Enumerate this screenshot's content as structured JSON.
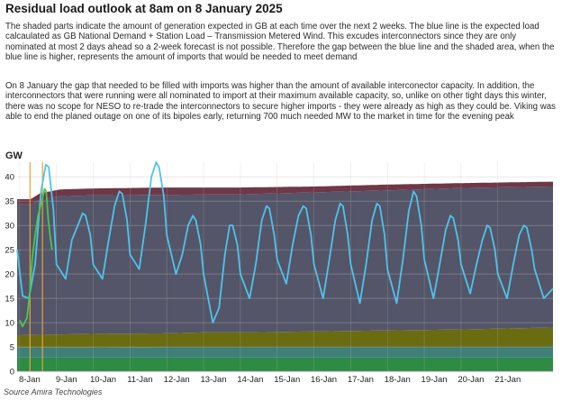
{
  "title": "Residual load outlook at 8am on 8 January 2025",
  "paragraphs": [
    "The shaded parts indicate the amount of generation expected in GB at each time over the next 2 weeks. The blue line is the expected load calcaulated as GB National Demand + Station Load – Transmission Metered Wind. This excudes interconnectors since they are only nominated at most 2 days ahead so a 2-week forecast is not possible. Therefore the gap between the blue line and the shaded area, when the blue line is higher, represents the amount of imports that would be needed to meet demand",
    "On 8 January the gap that needed to be filled with imports was higher than the amount of available interconector capacity. In addition, the interconnectors that were running were all nominated to import at their maximum available capacity, so, unlike on other tight days this winter, there was no scope for NESO to re-trade the interconnectors to secure higher imports - they were already as high as they could be. Viking was able to end the planed outage on one of its bipoles early, returning 700 much needed MW to the market in time for the evening peak"
  ],
  "source": "Source Amira Technologies",
  "colors": {
    "band_green": "#2e8b44",
    "band_teal": "#3e7f78",
    "band_olive": "#6b6b12",
    "band_slate": "#545568",
    "band_maroon": "#6e3848",
    "line_blue": "#4fc3ec",
    "line_green": "#46c94a",
    "marker": "#e8a23a",
    "grid": "#bdbdbd"
  },
  "chart_data": {
    "type": "area",
    "ylabel": "GW",
    "ylim": [
      0,
      43
    ],
    "yticks": [
      0,
      5,
      10,
      15,
      20,
      25,
      30,
      35,
      40
    ],
    "xlim": [
      7.93,
      22.5
    ],
    "xticks": [
      {
        "x": 8,
        "label": "8-Jan"
      },
      {
        "x": 9,
        "label": "9-Jan"
      },
      {
        "x": 10,
        "label": "10-Jan"
      },
      {
        "x": 11,
        "label": "11-Jan"
      },
      {
        "x": 12,
        "label": "12-Jan"
      },
      {
        "x": 13,
        "label": "13-Jan"
      },
      {
        "x": 14,
        "label": "14-Jan"
      },
      {
        "x": 15,
        "label": "15-Jan"
      },
      {
        "x": 16,
        "label": "16-Jan"
      },
      {
        "x": 17,
        "label": "17-Jan"
      },
      {
        "x": 18,
        "label": "18-Jan"
      },
      {
        "x": 19,
        "label": "19-Jan"
      },
      {
        "x": 20,
        "label": "20-Jan"
      },
      {
        "x": 21,
        "label": "21-Jan"
      }
    ],
    "stacked_bands": [
      {
        "color": "#2e8b44",
        "points": [
          [
            7.93,
            2.8
          ],
          [
            22.5,
            2.8
          ]
        ]
      },
      {
        "color": "#3e7f78",
        "points": [
          [
            7.93,
            5.0
          ],
          [
            8.55,
            4.9
          ],
          [
            10,
            4.9
          ],
          [
            12,
            5.0
          ],
          [
            14,
            5.0
          ],
          [
            16,
            5.0
          ],
          [
            18,
            5.0
          ],
          [
            22.5,
            5.0
          ]
        ]
      },
      {
        "color": "#6b6b12",
        "points": [
          [
            7.93,
            7.4
          ],
          [
            8.55,
            7.5
          ],
          [
            10,
            7.7
          ],
          [
            12,
            7.8
          ],
          [
            13,
            8.0
          ],
          [
            14,
            8.0
          ],
          [
            16,
            8.2
          ],
          [
            18,
            8.4
          ],
          [
            20,
            8.6
          ],
          [
            22.5,
            9.0
          ]
        ]
      },
      {
        "color": "#545568",
        "points": [
          [
            7.93,
            34.5
          ],
          [
            8.3,
            34.3
          ],
          [
            8.55,
            35.3
          ],
          [
            9.1,
            36.0
          ],
          [
            10,
            36.2
          ],
          [
            12,
            36.3
          ],
          [
            14,
            36.4
          ],
          [
            16,
            36.8
          ],
          [
            18,
            37.2
          ],
          [
            20,
            37.7
          ],
          [
            22.5,
            38.0
          ]
        ]
      },
      {
        "color": "#6e3848",
        "points": [
          [
            7.93,
            35.4
          ],
          [
            8.3,
            35.4
          ],
          [
            8.55,
            36.6
          ],
          [
            9.1,
            37.4
          ],
          [
            10,
            37.6
          ],
          [
            12,
            37.8
          ],
          [
            14,
            37.8
          ],
          [
            16,
            38.0
          ],
          [
            18,
            38.4
          ],
          [
            20,
            38.7
          ],
          [
            22.5,
            39.0
          ]
        ]
      }
    ],
    "series": [
      {
        "color": "#4fc3ec",
        "points": [
          [
            7.93,
            25
          ],
          [
            8.08,
            15.5
          ],
          [
            8.25,
            15
          ],
          [
            8.42,
            22
          ],
          [
            8.58,
            37
          ],
          [
            8.71,
            42.5
          ],
          [
            8.79,
            42
          ],
          [
            8.92,
            33
          ],
          [
            9.0,
            22
          ],
          [
            9.25,
            19
          ],
          [
            9.42,
            27
          ],
          [
            9.58,
            30
          ],
          [
            9.71,
            32.5
          ],
          [
            9.79,
            32
          ],
          [
            9.92,
            28
          ],
          [
            10.0,
            22
          ],
          [
            10.25,
            19
          ],
          [
            10.42,
            27
          ],
          [
            10.58,
            34
          ],
          [
            10.71,
            37
          ],
          [
            10.79,
            36.5
          ],
          [
            10.92,
            31
          ],
          [
            11.0,
            24
          ],
          [
            11.25,
            21
          ],
          [
            11.42,
            30
          ],
          [
            11.58,
            40
          ],
          [
            11.71,
            43
          ],
          [
            11.79,
            42
          ],
          [
            11.92,
            36
          ],
          [
            12.0,
            28
          ],
          [
            12.25,
            20
          ],
          [
            12.42,
            24
          ],
          [
            12.58,
            30
          ],
          [
            12.71,
            32
          ],
          [
            12.79,
            31
          ],
          [
            12.92,
            26
          ],
          [
            13.0,
            20
          ],
          [
            13.25,
            10
          ],
          [
            13.42,
            13
          ],
          [
            13.58,
            24
          ],
          [
            13.71,
            30
          ],
          [
            13.79,
            30
          ],
          [
            13.92,
            26
          ],
          [
            14.0,
            20
          ],
          [
            14.25,
            15
          ],
          [
            14.42,
            22
          ],
          [
            14.58,
            31
          ],
          [
            14.71,
            34
          ],
          [
            14.79,
            33.5
          ],
          [
            14.92,
            28
          ],
          [
            15.0,
            23
          ],
          [
            15.25,
            18
          ],
          [
            15.42,
            26
          ],
          [
            15.58,
            32
          ],
          [
            15.71,
            34
          ],
          [
            15.79,
            33.5
          ],
          [
            15.92,
            28
          ],
          [
            16.0,
            22
          ],
          [
            16.25,
            15
          ],
          [
            16.42,
            23
          ],
          [
            16.58,
            31
          ],
          [
            16.71,
            34.5
          ],
          [
            16.79,
            34
          ],
          [
            16.92,
            28
          ],
          [
            17.0,
            22
          ],
          [
            17.25,
            14
          ],
          [
            17.42,
            22
          ],
          [
            17.58,
            31
          ],
          [
            17.71,
            34.5
          ],
          [
            17.79,
            34
          ],
          [
            17.92,
            28
          ],
          [
            18.0,
            21
          ],
          [
            18.25,
            14
          ],
          [
            18.42,
            23
          ],
          [
            18.58,
            33
          ],
          [
            18.71,
            37
          ],
          [
            18.79,
            36
          ],
          [
            18.92,
            30
          ],
          [
            19.0,
            23
          ],
          [
            19.25,
            15
          ],
          [
            19.42,
            22
          ],
          [
            19.58,
            29
          ],
          [
            19.71,
            32
          ],
          [
            19.79,
            31.5
          ],
          [
            19.92,
            27
          ],
          [
            20.0,
            22
          ],
          [
            20.25,
            16
          ],
          [
            20.42,
            22
          ],
          [
            20.58,
            27
          ],
          [
            20.71,
            30
          ],
          [
            20.79,
            29.5
          ],
          [
            20.92,
            25
          ],
          [
            21.0,
            20
          ],
          [
            21.25,
            15
          ],
          [
            21.42,
            22
          ],
          [
            21.58,
            28
          ],
          [
            21.71,
            30
          ],
          [
            21.79,
            29.5
          ],
          [
            21.92,
            25
          ],
          [
            22.0,
            21
          ],
          [
            22.25,
            15
          ],
          [
            22.5,
            17
          ]
        ]
      },
      {
        "color": "#46c94a",
        "points": [
          [
            8.0,
            10.5
          ],
          [
            8.08,
            9.2
          ],
          [
            8.2,
            11
          ],
          [
            8.28,
            16.5
          ],
          [
            8.34,
            23
          ],
          [
            8.42,
            28
          ],
          [
            8.5,
            32
          ],
          [
            8.6,
            35
          ],
          [
            8.68,
            37.5
          ],
          [
            8.72,
            37
          ],
          [
            8.78,
            31
          ],
          [
            8.84,
            27
          ],
          [
            8.88,
            25
          ]
        ]
      }
    ],
    "markers": [
      {
        "x": 8.28,
        "color": "#e8a23a"
      },
      {
        "x": 8.62,
        "color": "#e8a23a"
      }
    ]
  }
}
